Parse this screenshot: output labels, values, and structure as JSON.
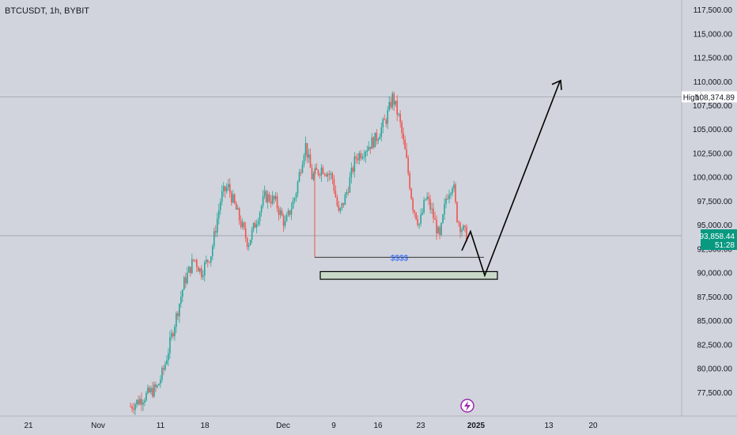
{
  "header": {
    "symbol_label": "BTCUSDT, 1h, BYBIT"
  },
  "colors": {
    "background": "#d1d4dc",
    "up_candle": "#26a69a",
    "down_candle": "#ef5350",
    "axis_text": "#131722",
    "current_price": "#089981",
    "zone_fill": "#c8d9c8",
    "drawing_line": "#000000",
    "label_blue": "#2962ff"
  },
  "chart_data": {
    "type": "candlestick",
    "symbol": "BTCUSDT",
    "interval": "1h",
    "exchange": "BYBIT",
    "ylim": [
      75000,
      118500
    ],
    "y_ticks": [
      77500,
      80000,
      82500,
      85000,
      87500,
      90000,
      92500,
      95000,
      97500,
      100000,
      102500,
      105000,
      107500,
      110000,
      112500,
      115000,
      117500
    ],
    "y_tick_labels": [
      "77,500.00",
      "80,000.00",
      "82,500.00",
      "85,000.00",
      "87,500.00",
      "90,000.00",
      "92,500.00",
      "95,000.00",
      "97,500.00",
      "100,000.00",
      "102,500.00",
      "105,000.00",
      "107,500.00",
      "110,000.00",
      "112,500.00",
      "115,000.00",
      "117,500.00"
    ],
    "x_tick_labels": [
      "21",
      "Nov",
      "11",
      "18",
      "Dec",
      "9",
      "16",
      "23",
      "2025",
      "13",
      "20"
    ],
    "high": {
      "label": "High",
      "value": 108374.89,
      "value_label": "108,374.89"
    },
    "current": {
      "value": 93858.44,
      "value_label": "93,858.44",
      "countdown": "51:28"
    },
    "price_path": [
      [
        0.0,
        76000
      ],
      [
        0.04,
        77000
      ],
      [
        0.08,
        78000
      ],
      [
        0.1,
        80000
      ],
      [
        0.12,
        83000
      ],
      [
        0.14,
        86000
      ],
      [
        0.16,
        89000
      ],
      [
        0.19,
        91500
      ],
      [
        0.21,
        90000
      ],
      [
        0.24,
        92000
      ],
      [
        0.27,
        98000
      ],
      [
        0.29,
        99000
      ],
      [
        0.32,
        96000
      ],
      [
        0.35,
        93000
      ],
      [
        0.38,
        96000
      ],
      [
        0.4,
        98000
      ],
      [
        0.43,
        97500
      ],
      [
        0.46,
        95000
      ],
      [
        0.49,
        98000
      ],
      [
        0.52,
        103500
      ],
      [
        0.54,
        100000
      ],
      [
        0.57,
        101000
      ],
      [
        0.6,
        100000
      ],
      [
        0.62,
        96000
      ],
      [
        0.64,
        98000
      ],
      [
        0.67,
        102000
      ],
      [
        0.7,
        103000
      ],
      [
        0.73,
        104000
      ],
      [
        0.76,
        106000
      ],
      [
        0.78,
        108374.89
      ],
      [
        0.8,
        106000
      ],
      [
        0.82,
        102000
      ],
      [
        0.84,
        97000
      ],
      [
        0.86,
        95000
      ],
      [
        0.88,
        98000
      ],
      [
        0.9,
        96000
      ],
      [
        0.92,
        93500
      ],
      [
        0.94,
        98000
      ],
      [
        0.96,
        99500
      ],
      [
        0.97,
        96000
      ],
      [
        0.98,
        95000
      ],
      [
        1.0,
        93858.44
      ]
    ],
    "annotations": {
      "liquidity_label": "$$$$",
      "liquidity_level": 91600,
      "demand_zone": [
        89300,
        90100
      ],
      "projection_path": [
        [
          92000,
          94000
        ],
        [
          92000,
          89700
        ],
        [
          110000,
          110000
        ]
      ]
    }
  }
}
